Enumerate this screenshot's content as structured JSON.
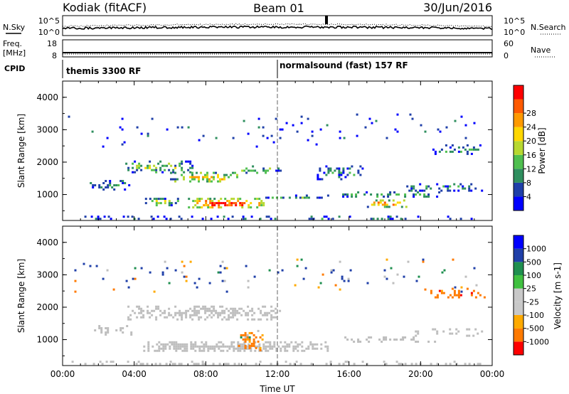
{
  "header": {
    "station": "Kodiak (fitACF)",
    "beam": "Beam 01",
    "date": "30/Jun/2016"
  },
  "noise_panel": {
    "left_label": "N.Sky",
    "right_label": "N.Search",
    "left_ticks": [
      "10^5",
      "10^0"
    ],
    "right_ticks": [
      "10^5",
      "10^0"
    ]
  },
  "freq_panel": {
    "left_label_1": "Freq.",
    "left_label_2": "[MHz]",
    "left_ticks": [
      "18",
      "8"
    ],
    "right_ticks": [
      "60",
      "0"
    ],
    "right_label": "Nave"
  },
  "cpid": {
    "label": "CPID",
    "segments": [
      {
        "text": "themis 3300 RF",
        "start_hour": 0
      },
      {
        "text": "normalsound (fast) 157 RF",
        "start_hour": 12
      }
    ]
  },
  "colors": {
    "power_scale": [
      "#0000ff",
      "#1f3fa8",
      "#2f8f5f",
      "#4fbf4f",
      "#b7d830",
      "#ffd700",
      "#ff9a00",
      "#ff5a00",
      "#ff0000"
    ],
    "velocity_scale": [
      "#ff0000",
      "#ff7a00",
      "#ffaa00",
      "#c8c8c8",
      "#c8c8c8",
      "#40c040",
      "#1f8f4f",
      "#1f3fa8",
      "#0000ff"
    ],
    "ground_scatter": "#bebebe"
  },
  "chart_data": [
    {
      "type": "heatmap",
      "name": "power",
      "ylabel": "Slant Range [km]",
      "yticks": [
        "1000",
        "2000",
        "3000",
        "4000"
      ],
      "ylim": [
        200,
        4500
      ],
      "xlim": [
        0,
        24
      ],
      "colorbar_label": "Power [dB]",
      "colorbar_ticks": [
        "4",
        "8",
        "12",
        "16",
        "20",
        "24",
        "28"
      ],
      "colorbar_range": [
        0,
        30
      ],
      "regions": [
        {
          "t0": 1.4,
          "t1": 3.8,
          "r0": 1150,
          "r1": 1450,
          "level": 0.3,
          "density": 0.55
        },
        {
          "t0": 3.5,
          "t1": 7.2,
          "r0": 1700,
          "r1": 2050,
          "level": 0.45,
          "density": 0.6
        },
        {
          "t0": 6.0,
          "t1": 9.8,
          "r0": 1400,
          "r1": 1700,
          "level": 0.65,
          "density": 0.65
        },
        {
          "t0": 9.5,
          "t1": 12.2,
          "r0": 1650,
          "r1": 1900,
          "level": 0.4,
          "density": 0.5
        },
        {
          "t0": 4.6,
          "t1": 6.4,
          "r0": 700,
          "r1": 900,
          "level": 0.55,
          "density": 0.55
        },
        {
          "t0": 7.0,
          "t1": 11.2,
          "r0": 600,
          "r1": 900,
          "level": 0.95,
          "density": 0.8
        },
        {
          "t0": 11.2,
          "t1": 14.8,
          "r0": 880,
          "r1": 1000,
          "level": 0.3,
          "density": 0.55
        },
        {
          "t0": 14.2,
          "t1": 16.8,
          "r0": 1500,
          "r1": 1900,
          "level": 0.25,
          "density": 0.35
        },
        {
          "t0": 15.5,
          "t1": 21.0,
          "r0": 950,
          "r1": 1100,
          "level": 0.35,
          "density": 0.55
        },
        {
          "t0": 17.0,
          "t1": 19.2,
          "r0": 650,
          "r1": 850,
          "level": 0.85,
          "density": 0.65
        },
        {
          "t0": 19.2,
          "t1": 23.6,
          "r0": 1150,
          "r1": 1350,
          "level": 0.3,
          "density": 0.45
        },
        {
          "t0": 20.3,
          "t1": 23.6,
          "r0": 2250,
          "r1": 2550,
          "level": 0.3,
          "density": 0.4
        },
        {
          "t0": 0.5,
          "t1": 23.5,
          "r0": 250,
          "r1": 350,
          "level": 0.2,
          "density": 0.35
        },
        {
          "t0": 0.3,
          "t1": 23.5,
          "r0": 2500,
          "r1": 3500,
          "level": 0.15,
          "density": 0.04
        }
      ]
    },
    {
      "type": "heatmap",
      "name": "velocity",
      "ylabel": "Slant Range [km]",
      "yticks": [
        "1000",
        "2000",
        "3000",
        "4000"
      ],
      "ylim": [
        200,
        4500
      ],
      "xlim": [
        0,
        24
      ],
      "xticks": [
        "00:00",
        "04:00",
        "08:00",
        "12:00",
        "16:00",
        "20:00",
        "00:00"
      ],
      "xlabel": "Time UT",
      "colorbar_label": "Velocity [m s-1]",
      "colorbar_ticks": [
        "1000",
        "500",
        "100",
        "25",
        "-25",
        "-100",
        "-500",
        "-1000"
      ],
      "colorbar_range": [
        -1000,
        1000
      ],
      "regions": [
        {
          "t0": 3.5,
          "t1": 12.2,
          "r0": 1650,
          "r1": 2050,
          "vel": 0,
          "density": 0.6
        },
        {
          "t0": 1.4,
          "t1": 3.8,
          "r0": 1150,
          "r1": 1450,
          "vel": 0,
          "density": 0.45
        },
        {
          "t0": 4.5,
          "t1": 14.8,
          "r0": 650,
          "r1": 950,
          "vel": 0,
          "density": 0.8
        },
        {
          "t0": 9.8,
          "t1": 11.2,
          "r0": 700,
          "r1": 1300,
          "vel": -200,
          "density": 0.55
        },
        {
          "t0": 15.5,
          "t1": 21.0,
          "r0": 950,
          "r1": 1100,
          "vel": 0,
          "density": 0.55
        },
        {
          "t0": 19.2,
          "t1": 23.6,
          "r0": 1150,
          "r1": 1350,
          "vel": 0,
          "density": 0.4
        },
        {
          "t0": 20.3,
          "t1": 23.6,
          "r0": 2300,
          "r1": 2600,
          "vel": -300,
          "density": 0.45
        },
        {
          "t0": 0.5,
          "t1": 23.5,
          "r0": 250,
          "r1": 350,
          "vel": 0,
          "density": 0.35
        },
        {
          "t0": 0.3,
          "t1": 23.5,
          "r0": 2500,
          "r1": 3500,
          "vel": 80,
          "density": 0.04
        }
      ]
    }
  ]
}
